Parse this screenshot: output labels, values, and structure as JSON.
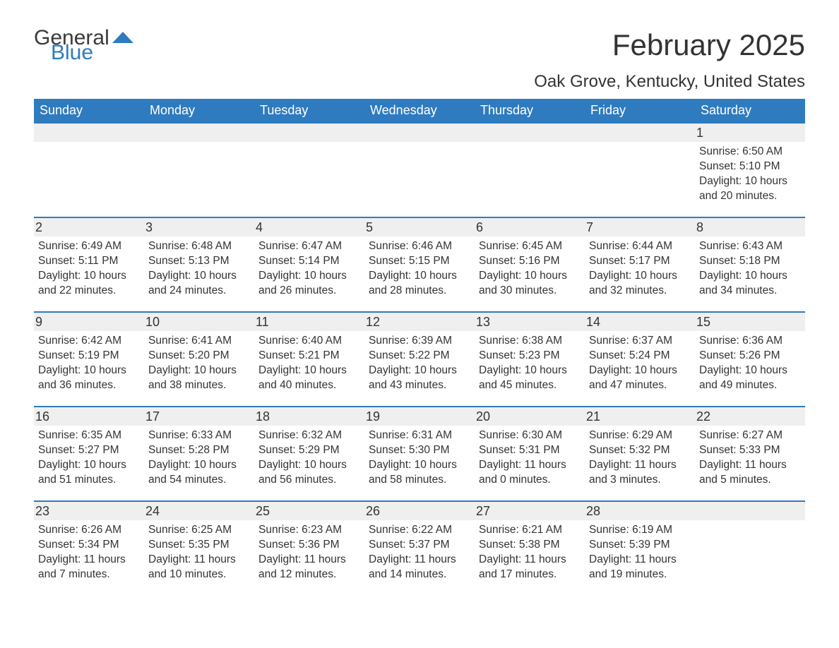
{
  "logo": {
    "general": "General",
    "blue": "Blue",
    "shape_color": "#2f7bbf"
  },
  "title": "February 2025",
  "location": "Oak Grove, Kentucky, United States",
  "colors": {
    "header_bg": "#2f7bbf",
    "header_text": "#ffffff",
    "daybar_bg": "#efefef",
    "daybar_border": "#2f7bbf",
    "body_text": "#333333",
    "background": "#ffffff"
  },
  "weekdays": [
    "Sunday",
    "Monday",
    "Tuesday",
    "Wednesday",
    "Thursday",
    "Friday",
    "Saturday"
  ],
  "labels": {
    "sunrise": "Sunrise",
    "sunset": "Sunset",
    "daylight": "Daylight"
  },
  "weeks": [
    [
      null,
      null,
      null,
      null,
      null,
      null,
      {
        "day": 1,
        "sunrise": "6:50 AM",
        "sunset": "5:10 PM",
        "daylight": "10 hours and 20 minutes."
      }
    ],
    [
      {
        "day": 2,
        "sunrise": "6:49 AM",
        "sunset": "5:11 PM",
        "daylight": "10 hours and 22 minutes."
      },
      {
        "day": 3,
        "sunrise": "6:48 AM",
        "sunset": "5:13 PM",
        "daylight": "10 hours and 24 minutes."
      },
      {
        "day": 4,
        "sunrise": "6:47 AM",
        "sunset": "5:14 PM",
        "daylight": "10 hours and 26 minutes."
      },
      {
        "day": 5,
        "sunrise": "6:46 AM",
        "sunset": "5:15 PM",
        "daylight": "10 hours and 28 minutes."
      },
      {
        "day": 6,
        "sunrise": "6:45 AM",
        "sunset": "5:16 PM",
        "daylight": "10 hours and 30 minutes."
      },
      {
        "day": 7,
        "sunrise": "6:44 AM",
        "sunset": "5:17 PM",
        "daylight": "10 hours and 32 minutes."
      },
      {
        "day": 8,
        "sunrise": "6:43 AM",
        "sunset": "5:18 PM",
        "daylight": "10 hours and 34 minutes."
      }
    ],
    [
      {
        "day": 9,
        "sunrise": "6:42 AM",
        "sunset": "5:19 PM",
        "daylight": "10 hours and 36 minutes."
      },
      {
        "day": 10,
        "sunrise": "6:41 AM",
        "sunset": "5:20 PM",
        "daylight": "10 hours and 38 minutes."
      },
      {
        "day": 11,
        "sunrise": "6:40 AM",
        "sunset": "5:21 PM",
        "daylight": "10 hours and 40 minutes."
      },
      {
        "day": 12,
        "sunrise": "6:39 AM",
        "sunset": "5:22 PM",
        "daylight": "10 hours and 43 minutes."
      },
      {
        "day": 13,
        "sunrise": "6:38 AM",
        "sunset": "5:23 PM",
        "daylight": "10 hours and 45 minutes."
      },
      {
        "day": 14,
        "sunrise": "6:37 AM",
        "sunset": "5:24 PM",
        "daylight": "10 hours and 47 minutes."
      },
      {
        "day": 15,
        "sunrise": "6:36 AM",
        "sunset": "5:26 PM",
        "daylight": "10 hours and 49 minutes."
      }
    ],
    [
      {
        "day": 16,
        "sunrise": "6:35 AM",
        "sunset": "5:27 PM",
        "daylight": "10 hours and 51 minutes."
      },
      {
        "day": 17,
        "sunrise": "6:33 AM",
        "sunset": "5:28 PM",
        "daylight": "10 hours and 54 minutes."
      },
      {
        "day": 18,
        "sunrise": "6:32 AM",
        "sunset": "5:29 PM",
        "daylight": "10 hours and 56 minutes."
      },
      {
        "day": 19,
        "sunrise": "6:31 AM",
        "sunset": "5:30 PM",
        "daylight": "10 hours and 58 minutes."
      },
      {
        "day": 20,
        "sunrise": "6:30 AM",
        "sunset": "5:31 PM",
        "daylight": "11 hours and 0 minutes."
      },
      {
        "day": 21,
        "sunrise": "6:29 AM",
        "sunset": "5:32 PM",
        "daylight": "11 hours and 3 minutes."
      },
      {
        "day": 22,
        "sunrise": "6:27 AM",
        "sunset": "5:33 PM",
        "daylight": "11 hours and 5 minutes."
      }
    ],
    [
      {
        "day": 23,
        "sunrise": "6:26 AM",
        "sunset": "5:34 PM",
        "daylight": "11 hours and 7 minutes."
      },
      {
        "day": 24,
        "sunrise": "6:25 AM",
        "sunset": "5:35 PM",
        "daylight": "11 hours and 10 minutes."
      },
      {
        "day": 25,
        "sunrise": "6:23 AM",
        "sunset": "5:36 PM",
        "daylight": "11 hours and 12 minutes."
      },
      {
        "day": 26,
        "sunrise": "6:22 AM",
        "sunset": "5:37 PM",
        "daylight": "11 hours and 14 minutes."
      },
      {
        "day": 27,
        "sunrise": "6:21 AM",
        "sunset": "5:38 PM",
        "daylight": "11 hours and 17 minutes."
      },
      {
        "day": 28,
        "sunrise": "6:19 AM",
        "sunset": "5:39 PM",
        "daylight": "11 hours and 19 minutes."
      },
      null
    ]
  ]
}
